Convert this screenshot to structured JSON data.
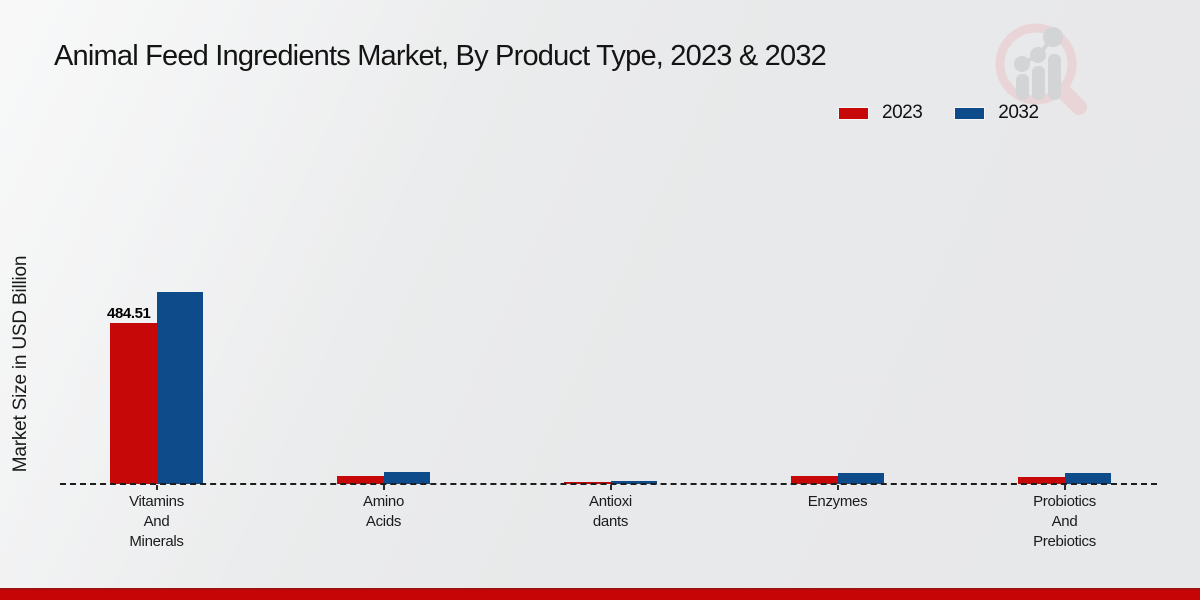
{
  "chart_data": {
    "type": "bar",
    "title": "Animal Feed Ingredients Market, By Product Type, 2023 & 2032",
    "ylabel": "Market Size in USD Billion",
    "xlabel": "",
    "categories": [
      "Vitamins And Minerals",
      "Amino Acids",
      "Antioxidants",
      "Enzymes",
      "Probiotics And Prebiotics"
    ],
    "category_display_lines": [
      [
        "Vitamins",
        "And",
        "Minerals"
      ],
      [
        "Amino",
        "Acids"
      ],
      [
        "Antioxi",
        "dants"
      ],
      [
        "Enzymes"
      ],
      [
        "Probiotics",
        "And",
        "Prebiotics"
      ]
    ],
    "series": [
      {
        "name": "2023",
        "color": "#c60808",
        "values": [
          484.51,
          24,
          6,
          24,
          21
        ]
      },
      {
        "name": "2032",
        "color": "#0e4b8b",
        "values": [
          578,
          36,
          9,
          33,
          33
        ]
      }
    ],
    "data_labels": [
      {
        "series": "2023",
        "category_index": 0,
        "text": "484.51"
      }
    ],
    "value_axis": {
      "unit": "USD Billion",
      "zero_line": "dashed",
      "ticks_visible": false
    },
    "grid": false,
    "legend_position": "top-right"
  },
  "watermark_icon": "magnifier-bar-chart-logo",
  "footer": {
    "bar_color": "#c60606",
    "bar_edge_color": "#a01010"
  },
  "colors": {
    "series_2023": "#c60808",
    "series_2032": "#0e4b8b",
    "background": "#e8e9ea",
    "text": "#141414"
  }
}
